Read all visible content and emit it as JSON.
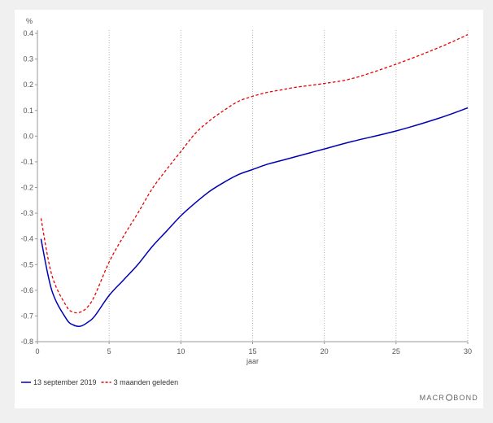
{
  "chart_data": {
    "type": "line",
    "ylabel": "%",
    "xlabel": "jaar",
    "xlim": [
      0,
      30
    ],
    "ylim": [
      -0.8,
      0.4
    ],
    "x_ticks": [
      0,
      5,
      10,
      15,
      20,
      25,
      30
    ],
    "y_ticks": [
      -0.8,
      -0.7,
      -0.6,
      -0.5,
      -0.4,
      -0.3,
      -0.2,
      -0.1,
      0.0,
      0.1,
      0.2,
      0.3,
      0.4
    ],
    "y_tick_labels": [
      "-0.8",
      "-0.7",
      "-0.6",
      "-0.5",
      "-0.4",
      "-0.3",
      "-0.2",
      "-0.1",
      "0.0",
      "0.1",
      "0.2",
      "0.3",
      "0.4"
    ],
    "grid": "vertical dotted",
    "legend_position": "bottom-left",
    "series": [
      {
        "name": "13 september 2019",
        "color": "#0000b4",
        "style": "solid",
        "x": [
          0.25,
          1,
          2,
          2.5,
          3,
          3.5,
          4,
          5,
          6,
          7,
          8,
          9,
          10,
          11,
          12,
          13,
          14,
          15,
          16,
          17,
          18,
          19,
          20,
          22,
          25,
          28,
          30
        ],
        "y": [
          -0.4,
          -0.6,
          -0.71,
          -0.735,
          -0.74,
          -0.725,
          -0.7,
          -0.62,
          -0.56,
          -0.5,
          -0.43,
          -0.37,
          -0.31,
          -0.26,
          -0.215,
          -0.18,
          -0.15,
          -0.13,
          -0.11,
          -0.095,
          -0.08,
          -0.065,
          -0.05,
          -0.02,
          0.02,
          0.07,
          0.11
        ]
      },
      {
        "name": "3 maanden geleden",
        "color": "#e80000",
        "style": "dashed",
        "x": [
          0.25,
          1,
          2,
          2.5,
          3,
          3.5,
          4,
          5,
          6,
          7,
          8,
          9,
          10,
          11,
          12,
          13,
          14,
          15,
          16,
          17,
          18,
          20,
          22,
          25,
          28,
          30
        ],
        "y": [
          -0.32,
          -0.54,
          -0.66,
          -0.685,
          -0.685,
          -0.665,
          -0.62,
          -0.49,
          -0.39,
          -0.3,
          -0.205,
          -0.13,
          -0.06,
          0.01,
          0.06,
          0.1,
          0.135,
          0.155,
          0.17,
          0.18,
          0.19,
          0.205,
          0.225,
          0.28,
          0.345,
          0.395
        ]
      }
    ]
  },
  "brand": {
    "text_before": "MACR",
    "text_after": "BOND",
    "icon": "circle-o-logo"
  }
}
